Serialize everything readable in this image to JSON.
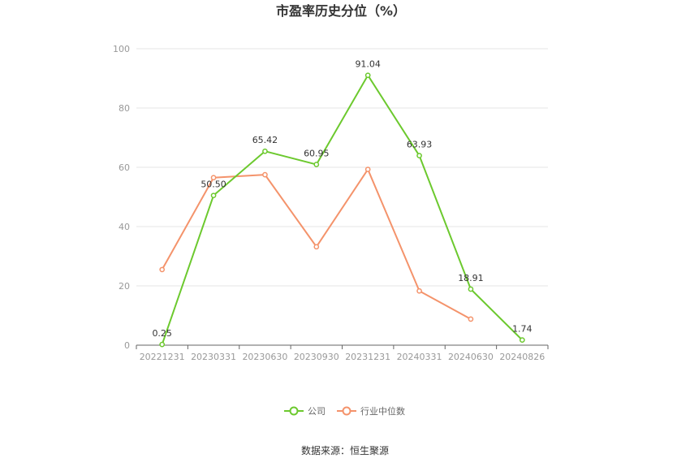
{
  "chart_data": {
    "type": "line",
    "title": "市盈率历史分位（%）",
    "xlabel": "",
    "ylabel": "",
    "categories": [
      "20221231",
      "20230331",
      "20230630",
      "20230930",
      "20231231",
      "20240331",
      "20240630",
      "20240826"
    ],
    "ylim": [
      0,
      100
    ],
    "yticks": [
      0,
      20,
      40,
      60,
      80,
      100
    ],
    "grid": true,
    "legend_position": "bottom",
    "series": [
      {
        "name": "公司",
        "color": "#6cc92e",
        "values": [
          0.25,
          50.5,
          65.42,
          60.95,
          91.04,
          63.93,
          18.91,
          1.74
        ],
        "labels": [
          "0.25",
          "50.50",
          "65.42",
          "60.95",
          "91.04",
          "63.93",
          "18.91",
          "1.74"
        ]
      },
      {
        "name": "行业中位数",
        "color": "#f4936b",
        "values": [
          25.5,
          56.5,
          57.5,
          33.2,
          59.3,
          18.3,
          8.8,
          null
        ]
      }
    ]
  },
  "source_text": "数据来源：恒生聚源"
}
